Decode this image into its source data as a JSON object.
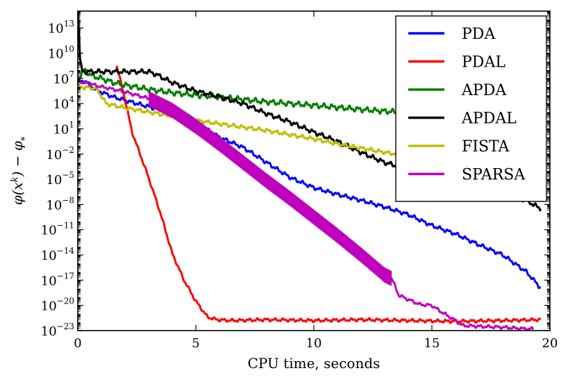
{
  "chart_data": {
    "type": "line",
    "title": "",
    "xlabel": "CPU time, seconds",
    "ylabel": "φ(x^k) − φ_*",
    "ylabel_parts": {
      "main": "φ(x",
      "sup": "k",
      "mid": ") − φ",
      "sub": "*"
    },
    "xlim": [
      0,
      20
    ],
    "ylim_log10": [
      -23,
      15
    ],
    "yscale": "log",
    "x_ticks": [
      0,
      5,
      10,
      15,
      20
    ],
    "y_ticks": [
      {
        "base": "10",
        "exp": "13"
      },
      {
        "base": "10",
        "exp": "10"
      },
      {
        "base": "10",
        "exp": "7"
      },
      {
        "base": "10",
        "exp": "4"
      },
      {
        "base": "10",
        "exp": "1"
      },
      {
        "base": "10",
        "exp": "−2"
      },
      {
        "base": "10",
        "exp": "−5"
      },
      {
        "base": "10",
        "exp": "−8"
      },
      {
        "base": "10",
        "exp": "−11"
      },
      {
        "base": "10",
        "exp": "−14"
      },
      {
        "base": "10",
        "exp": "−17"
      },
      {
        "base": "10",
        "exp": "−20"
      },
      {
        "base": "10",
        "exp": "−23"
      }
    ],
    "y_tick_values_log10": [
      13,
      10,
      7,
      4,
      1,
      -2,
      -5,
      -8,
      -11,
      -14,
      -17,
      -20,
      -23
    ],
    "grid": false,
    "legend_position": "top-right",
    "series": [
      {
        "name": "PDA",
        "color": "#0000ff",
        "noise": 0.25,
        "points": [
          [
            0,
            6.5
          ],
          [
            0.3,
            6.7
          ],
          [
            0.8,
            5.6
          ],
          [
            1.5,
            4.8
          ],
          [
            2.5,
            4.0
          ],
          [
            4,
            2.9
          ],
          [
            5,
            1.7
          ],
          [
            6,
            0.0
          ],
          [
            7,
            -1.2
          ],
          [
            8,
            -3.0
          ],
          [
            9,
            -4.8
          ],
          [
            10,
            -6.0
          ],
          [
            11,
            -6.8
          ],
          [
            12,
            -7.5
          ],
          [
            13,
            -8.3
          ],
          [
            14,
            -9.2
          ],
          [
            15,
            -10.5
          ],
          [
            16,
            -11.5
          ],
          [
            17,
            -12.8
          ],
          [
            18,
            -14.0
          ],
          [
            19,
            -16.0
          ],
          [
            19.6,
            -17.9
          ]
        ]
      },
      {
        "name": "PDAL",
        "color": "#ff0000",
        "noise": 0.2,
        "points": [
          [
            1.65,
            8.5
          ],
          [
            1.8,
            6.8
          ],
          [
            2.0,
            4.5
          ],
          [
            2.3,
            0.6
          ],
          [
            2.6,
            -1.7
          ],
          [
            3.0,
            -4.8
          ],
          [
            3.5,
            -9.0
          ],
          [
            4.0,
            -13.8
          ],
          [
            4.5,
            -17.0
          ],
          [
            5.0,
            -19.5
          ],
          [
            5.5,
            -21.4
          ],
          [
            5.9,
            -21.7
          ],
          [
            6.5,
            -21.8
          ],
          [
            8,
            -21.7
          ],
          [
            10,
            -21.8
          ],
          [
            12,
            -21.7
          ],
          [
            14,
            -21.8
          ],
          [
            16,
            -21.9
          ],
          [
            18,
            -21.8
          ],
          [
            19.6,
            -21.7
          ]
        ]
      },
      {
        "name": "APDA",
        "color": "#008000",
        "noise": 0.35,
        "points": [
          [
            0,
            7.0
          ],
          [
            0.3,
            8.0
          ],
          [
            0.6,
            7.3
          ],
          [
            1,
            7.0
          ],
          [
            1.5,
            6.5
          ],
          [
            2,
            6.2
          ],
          [
            3,
            5.7
          ],
          [
            4,
            5.3
          ],
          [
            5,
            5.0
          ],
          [
            6,
            4.8
          ],
          [
            8,
            4.2
          ],
          [
            10,
            3.8
          ],
          [
            12,
            3.3
          ],
          [
            14,
            2.9
          ],
          [
            16,
            2.5
          ],
          [
            18,
            2.2
          ],
          [
            19.6,
            1.7
          ]
        ]
      },
      {
        "name": "APDAL",
        "color": "#000000",
        "noise": 0.3,
        "points": [
          [
            0,
            16.0
          ],
          [
            0.1,
            9.0
          ],
          [
            0.2,
            7.8
          ],
          [
            3.0,
            7.8
          ],
          [
            3.3,
            7.5
          ],
          [
            4,
            6.5
          ],
          [
            5,
            5.5
          ],
          [
            6,
            4.8
          ],
          [
            7,
            4.0
          ],
          [
            8,
            2.8
          ],
          [
            9,
            1.8
          ],
          [
            10,
            0.6
          ],
          [
            11,
            -0.5
          ],
          [
            12,
            -1.8
          ],
          [
            13,
            -3.0
          ],
          [
            14,
            -3.8
          ],
          [
            15,
            -4.5
          ],
          [
            16,
            -5.0
          ],
          [
            17,
            -5.5
          ],
          [
            18,
            -6.5
          ],
          [
            19,
            -7.5
          ],
          [
            19.6,
            -8.5
          ]
        ]
      },
      {
        "name": "FISTA",
        "color": "#bfbf00",
        "noise": 0.25,
        "points": [
          [
            0,
            6.0
          ],
          [
            0.8,
            5.8
          ],
          [
            1.2,
            4.0
          ],
          [
            2,
            3.5
          ],
          [
            3,
            3.0
          ],
          [
            4,
            2.5
          ],
          [
            5,
            2.0
          ],
          [
            6,
            1.6
          ],
          [
            7,
            1.2
          ],
          [
            8,
            0.8
          ],
          [
            9,
            0.3
          ],
          [
            10,
            -0.2
          ],
          [
            11,
            -0.8
          ],
          [
            12,
            -1.3
          ],
          [
            13,
            -1.8
          ],
          [
            14,
            -2.2
          ],
          [
            15,
            -2.6
          ],
          [
            16,
            -3.0
          ],
          [
            17,
            -3.5
          ],
          [
            18,
            -4.0
          ],
          [
            19,
            -4.4
          ],
          [
            19.6,
            -4.8
          ]
        ]
      },
      {
        "name": "SPARSA",
        "color": "#bf00bf",
        "noise": 0.2,
        "points": [
          [
            0,
            6.7
          ],
          [
            1,
            6.0
          ],
          [
            2,
            5.4
          ],
          [
            3,
            4.6
          ],
          [
            4,
            3.2
          ],
          [
            5,
            1.3
          ],
          [
            6,
            -0.8
          ],
          [
            7,
            -3.0
          ],
          [
            8,
            -5.2
          ],
          [
            9,
            -7.3
          ],
          [
            10,
            -9.5
          ],
          [
            11,
            -11.7
          ],
          [
            12,
            -14.0
          ],
          [
            13,
            -16.4
          ],
          [
            13.3,
            -16.8
          ],
          [
            13.6,
            -18.8
          ],
          [
            14,
            -19.3
          ],
          [
            14.5,
            -19.9
          ],
          [
            15,
            -20.0
          ],
          [
            15.3,
            -20.6
          ],
          [
            16,
            -21.8
          ],
          [
            16.3,
            -22.4
          ],
          [
            17,
            -22.5
          ],
          [
            18,
            -22.6
          ],
          [
            19,
            -22.8
          ],
          [
            19.3,
            -22.8
          ]
        ],
        "band_segment": {
          "from": 3.0,
          "to": 13.3,
          "width": 0.9
        }
      }
    ]
  }
}
